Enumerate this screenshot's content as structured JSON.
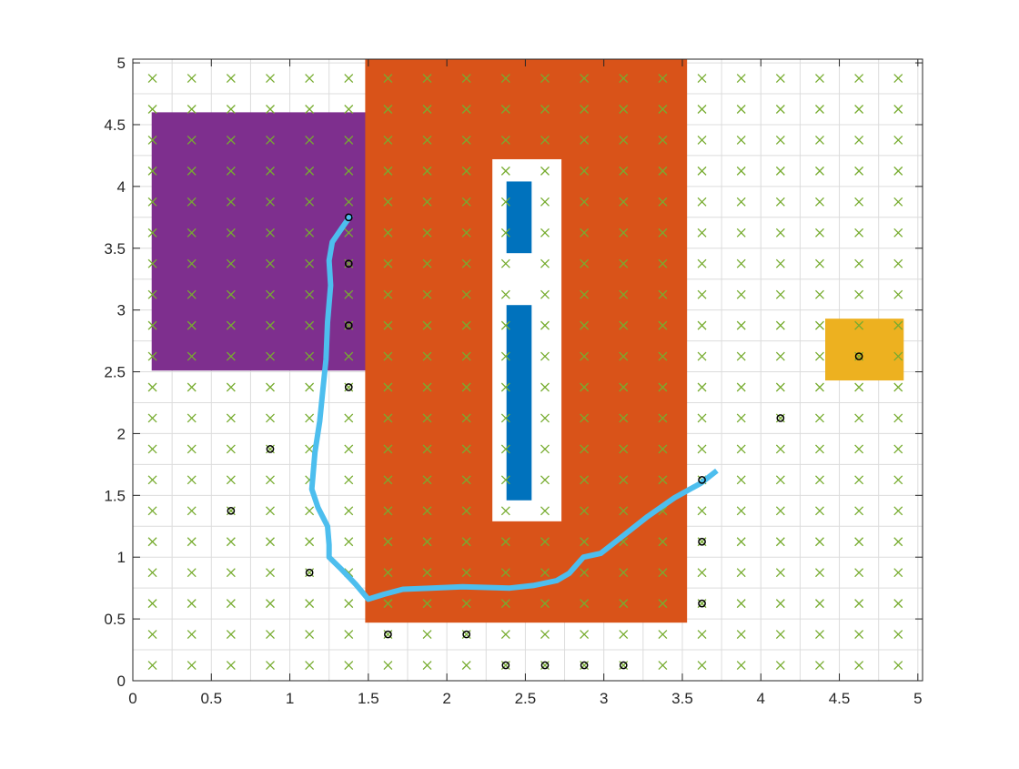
{
  "chart_data": {
    "type": "scatter",
    "title": "",
    "xlabel": "",
    "ylabel": "",
    "xlim": [
      0,
      5.03
    ],
    "ylim": [
      0,
      5.03
    ],
    "grid": true,
    "x_ticks": [
      "0",
      "0.5",
      "1",
      "1.5",
      "2",
      "2.5",
      "3",
      "3.5",
      "4",
      "4.5",
      "5"
    ],
    "y_ticks": [
      "0",
      "0.5",
      "1",
      "1.5",
      "2",
      "2.5",
      "3",
      "3.5",
      "4",
      "4.5",
      "5"
    ],
    "regions": [
      {
        "name": "purple-region",
        "color": "#7E2F8E",
        "x0": 0.12,
        "x1": 1.53,
        "y0": 2.51,
        "y1": 4.6
      },
      {
        "name": "orange-region",
        "color": "#D95319",
        "x0": 1.48,
        "x1": 3.53,
        "y0": 0.47,
        "y1": 5.03
      },
      {
        "name": "white-slot",
        "color": "#FFFFFF",
        "x0": 2.29,
        "x1": 2.73,
        "y0": 1.29,
        "y1": 4.22
      },
      {
        "name": "blue-bar-upper",
        "color": "#0072BD",
        "x0": 2.38,
        "x1": 2.54,
        "y0": 3.46,
        "y1": 4.04
      },
      {
        "name": "blue-bar-lower",
        "color": "#0072BD",
        "x0": 2.38,
        "x1": 2.54,
        "y0": 1.46,
        "y1": 3.04
      },
      {
        "name": "yellow-region",
        "color": "#EDB120",
        "x0": 4.41,
        "x1": 4.91,
        "y0": 2.43,
        "y1": 2.93
      }
    ],
    "grid_marker_color": "#77AC30",
    "grid_marker_start": 0.125,
    "grid_marker_step": 0.25,
    "grid_marker_count": 20,
    "circle_points": [
      [
        1.375,
        3.75
      ],
      [
        1.375,
        3.375
      ],
      [
        1.375,
        2.875
      ],
      [
        1.375,
        2.375
      ],
      [
        0.875,
        1.875
      ],
      [
        0.625,
        1.375
      ],
      [
        1.125,
        0.875
      ],
      [
        1.625,
        0.375
      ],
      [
        2.125,
        0.375
      ],
      [
        2.375,
        0.125
      ],
      [
        2.625,
        0.125
      ],
      [
        2.875,
        0.125
      ],
      [
        3.125,
        0.125
      ],
      [
        3.625,
        0.625
      ],
      [
        3.625,
        1.125
      ],
      [
        3.625,
        1.625
      ],
      [
        4.125,
        2.125
      ],
      [
        4.625,
        2.625
      ]
    ],
    "path_color": "#4DBEEE",
    "path": [
      [
        1.39,
        3.77
      ],
      [
        1.33,
        3.66
      ],
      [
        1.27,
        3.55
      ],
      [
        1.25,
        3.4
      ],
      [
        1.26,
        3.2
      ],
      [
        1.24,
        2.9
      ],
      [
        1.23,
        2.6
      ],
      [
        1.21,
        2.35
      ],
      [
        1.19,
        2.1
      ],
      [
        1.16,
        1.85
      ],
      [
        1.14,
        1.55
      ],
      [
        1.18,
        1.4
      ],
      [
        1.24,
        1.25
      ],
      [
        1.25,
        1.1
      ],
      [
        1.25,
        1.0
      ],
      [
        1.33,
        0.9
      ],
      [
        1.42,
        0.78
      ],
      [
        1.5,
        0.66
      ],
      [
        1.6,
        0.7
      ],
      [
        1.72,
        0.74
      ],
      [
        1.9,
        0.75
      ],
      [
        2.1,
        0.76
      ],
      [
        2.4,
        0.75
      ],
      [
        2.55,
        0.77
      ],
      [
        2.7,
        0.81
      ],
      [
        2.78,
        0.87
      ],
      [
        2.87,
        1.0
      ],
      [
        2.98,
        1.03
      ],
      [
        3.1,
        1.15
      ],
      [
        3.28,
        1.33
      ],
      [
        3.45,
        1.48
      ],
      [
        3.62,
        1.6
      ],
      [
        3.72,
        1.7
      ]
    ]
  }
}
